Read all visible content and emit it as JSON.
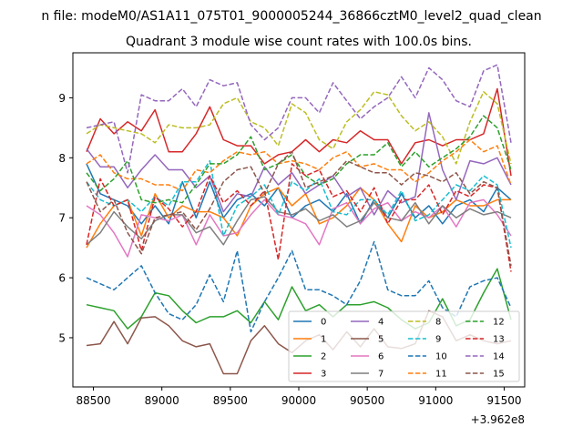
{
  "chart_data": {
    "type": "line",
    "suptitle": "n file: modeM0/AS1A11_075T01_9000005244_36866cztM0_level2_quad_clean",
    "title": "Quadrant 3 module wise count rates with 100.0s bins.",
    "xlabel": "",
    "ylabel": "",
    "offset_label": "+3.962e8",
    "x_tick_labels": [
      "88500",
      "89000",
      "89500",
      "90000",
      "90500",
      "91000",
      "91500"
    ],
    "y_tick_labels": [
      "5",
      "6",
      "7",
      "8",
      "9"
    ],
    "xlim": [
      88350,
      91650
    ],
    "ylim": [
      4.18,
      9.75
    ],
    "grid": false,
    "legend_location": "lower-right",
    "legend_columns": 4,
    "x": [
      88450,
      88550,
      88650,
      88750,
      88850,
      88950,
      89050,
      89150,
      89250,
      89350,
      89450,
      89550,
      89650,
      89750,
      89850,
      89950,
      90050,
      90150,
      90250,
      90350,
      90450,
      90550,
      90650,
      90750,
      90850,
      90950,
      91050,
      91150,
      91250,
      91350,
      91450,
      91550
    ],
    "series": [
      {
        "name": "0",
        "color": "#1f77b4",
        "dashed": false,
        "values": [
          7.9,
          7.4,
          7.3,
          7.2,
          6.9,
          7.2,
          6.9,
          7.6,
          7.0,
          7.6,
          7.0,
          7.3,
          7.4,
          7.2,
          7.5,
          7.0,
          7.2,
          7.3,
          7.1,
          7.4,
          6.9,
          7.3,
          7.0,
          7.4,
          7.0,
          7.2,
          6.9,
          7.2,
          7.3,
          7.1,
          7.5,
          7.3
        ]
      },
      {
        "name": "1",
        "color": "#ff7f0e",
        "dashed": false,
        "values": [
          6.5,
          6.9,
          7.2,
          7.3,
          6.7,
          7.4,
          7.0,
          7.2,
          7.1,
          7.1,
          7.0,
          6.7,
          7.2,
          7.4,
          7.5,
          7.2,
          7.4,
          6.9,
          7.0,
          7.2,
          7.5,
          7.3,
          6.9,
          6.6,
          7.2,
          7.0,
          7.1,
          7.3,
          7.2,
          7.2,
          7.3,
          7.3
        ]
      },
      {
        "name": "2",
        "color": "#2ca02c",
        "dashed": false,
        "values": [
          5.55,
          5.5,
          5.45,
          5.15,
          5.35,
          5.75,
          5.7,
          5.45,
          5.25,
          5.35,
          5.35,
          5.45,
          5.25,
          5.6,
          5.3,
          5.85,
          5.45,
          5.55,
          5.35,
          5.55,
          5.55,
          5.6,
          5.5,
          5.3,
          5.15,
          5.25,
          5.65,
          5.2,
          5.3,
          5.75,
          6.15,
          5.3
        ]
      },
      {
        "name": "3",
        "color": "#d62728",
        "dashed": false,
        "values": [
          8.1,
          8.65,
          8.4,
          8.6,
          8.45,
          8.8,
          8.1,
          8.1,
          8.4,
          8.85,
          8.3,
          8.2,
          8.2,
          7.9,
          8.05,
          8.1,
          8.3,
          8.1,
          8.3,
          8.25,
          8.45,
          8.3,
          8.3,
          7.9,
          8.25,
          8.3,
          8.2,
          8.3,
          8.3,
          8.4,
          9.15,
          7.7
        ]
      },
      {
        "name": "4",
        "color": "#9467bd",
        "dashed": false,
        "values": [
          8.15,
          7.85,
          7.85,
          7.5,
          7.8,
          8.05,
          7.8,
          7.8,
          7.5,
          7.7,
          7.1,
          7.4,
          7.35,
          7.85,
          7.55,
          7.75,
          7.4,
          7.55,
          7.7,
          7.35,
          7.5,
          7.05,
          7.45,
          7.25,
          7.35,
          8.75,
          7.8,
          7.3,
          7.95,
          7.9,
          8.0,
          7.55
        ]
      },
      {
        "name": "5",
        "color": "#8c564b",
        "dashed": false,
        "values": [
          4.87,
          4.9,
          5.27,
          4.9,
          5.33,
          5.35,
          5.2,
          4.95,
          4.85,
          4.9,
          4.4,
          4.4,
          4.95,
          5.2,
          4.9,
          4.75,
          4.95,
          5.05,
          4.8,
          5.1,
          4.85,
          5.15,
          4.85,
          4.82,
          4.9,
          5.45,
          5.35,
          4.95,
          5.05,
          4.95,
          4.9,
          4.95
        ]
      },
      {
        "name": "6",
        "color": "#e377c2",
        "dashed": false,
        "values": [
          7.2,
          7.05,
          6.75,
          6.35,
          7.05,
          7.0,
          6.95,
          7.05,
          6.55,
          7.05,
          6.7,
          6.75,
          7.05,
          7.3,
          7.05,
          7.0,
          6.9,
          6.55,
          7.15,
          7.25,
          6.9,
          7.15,
          7.25,
          6.95,
          7.1,
          7.0,
          7.2,
          6.85,
          7.25,
          7.3,
          7.05,
          6.7
        ]
      },
      {
        "name": "7",
        "color": "#7f7f7f",
        "dashed": false,
        "values": [
          6.55,
          6.75,
          7.1,
          6.85,
          6.65,
          6.95,
          7.05,
          7.05,
          6.75,
          6.85,
          6.55,
          6.95,
          7.3,
          7.35,
          7.1,
          7.05,
          7.15,
          6.95,
          7.05,
          6.85,
          6.95,
          7.25,
          7.0,
          6.95,
          7.25,
          6.9,
          7.2,
          7.0,
          7.15,
          7.05,
          7.1,
          7.0
        ]
      },
      {
        "name": "8",
        "color": "#bcbd22",
        "dashed": true,
        "values": [
          8.4,
          8.55,
          8.5,
          8.45,
          8.4,
          8.25,
          8.55,
          8.5,
          8.5,
          8.55,
          8.9,
          9.0,
          8.6,
          8.5,
          8.2,
          8.9,
          8.75,
          8.3,
          8.15,
          8.6,
          8.8,
          9.1,
          9.05,
          8.7,
          8.45,
          8.6,
          8.35,
          7.9,
          8.6,
          9.1,
          8.9,
          7.9
        ]
      },
      {
        "name": "9",
        "color": "#17becf",
        "dashed": true,
        "values": [
          7.6,
          7.3,
          7.2,
          7.3,
          7.1,
          7.35,
          7.2,
          7.6,
          7.6,
          7.95,
          6.7,
          7.2,
          7.35,
          7.55,
          7.05,
          7.6,
          7.45,
          7.65,
          7.1,
          7.05,
          7.3,
          7.3,
          7.05,
          7.45,
          6.95,
          7.05,
          7.3,
          7.55,
          7.45,
          7.7,
          7.55,
          6.5
        ]
      },
      {
        "name": "10",
        "color": "#1f77b4",
        "dashed": true,
        "values": [
          6.0,
          5.9,
          5.8,
          6.0,
          6.2,
          5.75,
          5.4,
          5.3,
          5.55,
          6.05,
          5.6,
          6.45,
          5.1,
          5.6,
          6.0,
          6.45,
          5.8,
          5.8,
          5.7,
          5.55,
          5.95,
          6.6,
          5.8,
          5.7,
          5.7,
          5.95,
          5.5,
          5.35,
          5.85,
          5.95,
          6.0,
          5.5
        ]
      },
      {
        "name": "11",
        "color": "#ff7f0e",
        "dashed": true,
        "values": [
          7.9,
          8.05,
          7.75,
          7.65,
          7.65,
          7.55,
          7.55,
          7.45,
          7.8,
          7.75,
          7.95,
          8.1,
          8.05,
          8.1,
          7.9,
          7.95,
          7.9,
          7.8,
          8.0,
          8.1,
          7.85,
          7.9,
          7.8,
          7.8,
          7.6,
          7.75,
          7.95,
          8.1,
          8.3,
          8.1,
          8.2,
          7.55
        ]
      },
      {
        "name": "12",
        "color": "#2ca02c",
        "dashed": true,
        "values": [
          7.75,
          7.45,
          7.65,
          7.95,
          7.3,
          7.25,
          7.3,
          7.25,
          7.55,
          7.9,
          7.9,
          8.05,
          8.35,
          7.8,
          7.9,
          8.05,
          7.7,
          7.55,
          7.65,
          7.9,
          8.05,
          8.05,
          8.25,
          7.85,
          8.1,
          7.85,
          8.0,
          8.15,
          8.35,
          8.7,
          8.5,
          7.8
        ]
      },
      {
        "name": "13",
        "color": "#d62728",
        "dashed": true,
        "values": [
          6.55,
          7.65,
          7.2,
          7.3,
          6.45,
          7.35,
          7.15,
          6.85,
          7.1,
          7.7,
          7.25,
          7.45,
          7.2,
          7.45,
          6.3,
          7.9,
          7.7,
          7.8,
          7.35,
          7.45,
          7.1,
          7.5,
          6.9,
          7.3,
          7.3,
          7.55,
          7.05,
          7.45,
          7.35,
          7.55,
          7.5,
          6.1
        ]
      },
      {
        "name": "14",
        "color": "#9467bd",
        "dashed": true,
        "values": [
          8.5,
          8.55,
          8.6,
          7.75,
          9.05,
          8.95,
          8.95,
          9.15,
          8.85,
          9.3,
          9.2,
          9.25,
          8.55,
          8.3,
          8.5,
          9.0,
          9.0,
          8.75,
          9.25,
          8.95,
          8.65,
          8.85,
          9.0,
          9.35,
          9.0,
          9.5,
          9.3,
          8.95,
          8.85,
          9.45,
          9.55,
          8.25
        ]
      },
      {
        "name": "15",
        "color": "#8c564b",
        "dashed": true,
        "values": [
          7.6,
          7.1,
          7.3,
          6.75,
          6.4,
          7.0,
          7.05,
          7.1,
          6.8,
          7.15,
          7.6,
          7.8,
          7.85,
          7.4,
          7.9,
          8.1,
          7.5,
          7.6,
          7.7,
          7.95,
          7.85,
          7.75,
          7.75,
          7.55,
          7.75,
          7.7,
          7.6,
          7.75,
          7.4,
          7.6,
          7.5,
          6.2
        ]
      }
    ]
  }
}
